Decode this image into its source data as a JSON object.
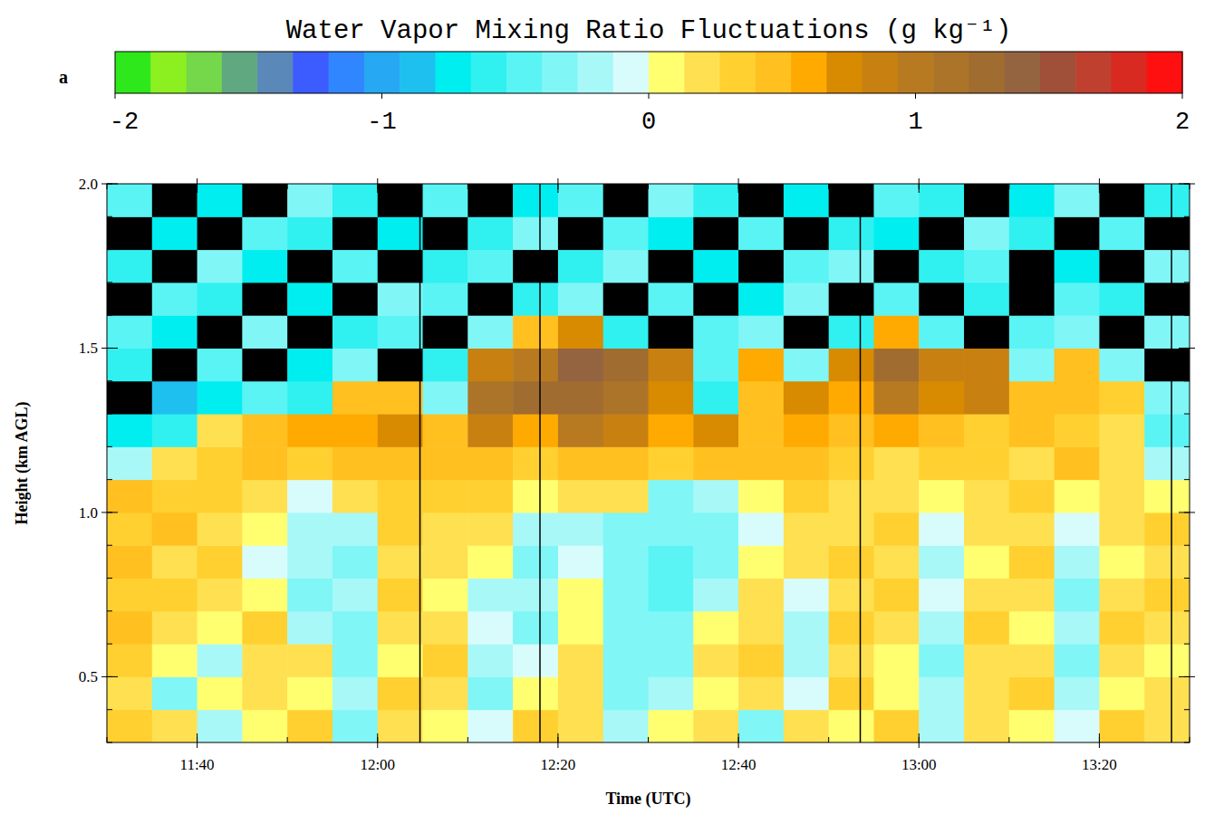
{
  "chart_data": {
    "type": "heatmap",
    "title": "Water Vapor Mixing Ratio Fluctuations (g kg⁻¹)",
    "panel_label": "a",
    "xlabel": "Time (UTC)",
    "ylabel": "Height (km AGL)",
    "xlim": [
      690,
      810
    ],
    "ylim": [
      0.3,
      2.0
    ],
    "xticks": [
      {
        "value": 700,
        "label": "11:40"
      },
      {
        "value": 720,
        "label": "12:00"
      },
      {
        "value": 740,
        "label": "12:20"
      },
      {
        "value": 760,
        "label": "12:40"
      },
      {
        "value": 780,
        "label": "13:00"
      },
      {
        "value": 800,
        "label": "13:20"
      }
    ],
    "yticks": [
      0.5,
      {
        "value": 1,
        "label": "1.0"
      },
      1.5,
      {
        "value": 2,
        "label": "2.0"
      }
    ],
    "x": [
      690,
      695,
      700,
      705,
      710,
      715,
      720,
      725,
      730,
      735,
      740,
      745,
      750,
      755,
      760,
      765,
      770,
      775,
      780,
      785,
      790,
      795,
      800,
      805,
      810
    ],
    "y": [
      0.3,
      0.4,
      0.5,
      0.6,
      0.7,
      0.8,
      0.9,
      1.0,
      1.1,
      1.2,
      1.3,
      1.4,
      1.5,
      1.6,
      1.7,
      1.8,
      1.9,
      2.0
    ],
    "values": [
      [
        0.3,
        0.2,
        -0.2,
        0.1,
        0.3,
        -0.3,
        0.2,
        0.1,
        -0.1,
        0.3,
        0.2,
        -0.2,
        0.1,
        0.2,
        -0.3,
        0.2,
        0.1,
        0.3,
        -0.2,
        0.2,
        0.1,
        -0.1,
        0.3,
        0.2
      ],
      [
        0.2,
        -0.3,
        0.1,
        0.2,
        0.1,
        -0.2,
        0.3,
        0.2,
        -0.3,
        0.1,
        0.2,
        -0.4,
        -0.2,
        0.1,
        0.2,
        -0.1,
        0.3,
        0.1,
        -0.2,
        0.2,
        0.3,
        -0.2,
        0.1,
        0.2
      ],
      [
        0.3,
        0.1,
        -0.2,
        0.2,
        0.2,
        -0.3,
        0.1,
        0.3,
        -0.2,
        -0.1,
        0.2,
        -0.3,
        -0.4,
        0.2,
        0.3,
        -0.2,
        0.2,
        0.1,
        -0.3,
        0.2,
        0.2,
        -0.3,
        0.2,
        0.1
      ],
      [
        0.4,
        0.2,
        0.1,
        0.3,
        -0.2,
        -0.3,
        0.2,
        0.2,
        -0.1,
        -0.3,
        0.1,
        -0.4,
        -0.3,
        0.1,
        0.2,
        -0.2,
        0.3,
        0.2,
        -0.2,
        0.3,
        0.1,
        -0.2,
        0.3,
        0.2
      ],
      [
        0.3,
        0.3,
        0.2,
        0.1,
        -0.3,
        -0.2,
        0.3,
        0.1,
        -0.2,
        -0.2,
        0.1,
        -0.3,
        -0.5,
        -0.2,
        0.2,
        -0.1,
        0.2,
        0.3,
        -0.1,
        0.2,
        0.2,
        -0.3,
        0.2,
        0.3
      ],
      [
        0.4,
        0.2,
        0.3,
        -0.1,
        -0.2,
        -0.3,
        0.2,
        0.2,
        0.1,
        -0.3,
        -0.1,
        -0.4,
        -0.5,
        -0.3,
        0.1,
        0.2,
        0.3,
        0.2,
        -0.2,
        0.1,
        0.3,
        -0.2,
        0.1,
        0.2
      ],
      [
        0.3,
        0.4,
        0.2,
        0.1,
        -0.2,
        -0.2,
        0.3,
        0.2,
        0.2,
        -0.2,
        -0.2,
        -0.3,
        -0.4,
        -0.3,
        -0.1,
        0.2,
        0.2,
        0.3,
        -0.1,
        0.2,
        0.2,
        -0.1,
        0.2,
        0.3
      ],
      [
        0.4,
        0.3,
        0.3,
        0.2,
        -0.1,
        0.2,
        0.3,
        0.3,
        0.3,
        0.1,
        0.2,
        0.2,
        -0.3,
        -0.2,
        0.1,
        0.3,
        0.2,
        0.2,
        0.1,
        0.2,
        0.3,
        0.1,
        0.2,
        0.1
      ],
      [
        -0.2,
        0.2,
        0.3,
        0.4,
        0.3,
        0.4,
        0.5,
        0.4,
        0.4,
        0.3,
        0.5,
        0.4,
        0.3,
        0.4,
        0.4,
        0.4,
        0.3,
        0.2,
        0.3,
        0.3,
        0.2,
        0.4,
        0.2,
        -0.2
      ],
      [
        -0.8,
        -0.6,
        0.2,
        0.5,
        0.6,
        0.6,
        0.7,
        0.5,
        0.8,
        0.6,
        1.0,
        0.8,
        0.6,
        0.7,
        0.5,
        0.6,
        0.4,
        0.6,
        0.5,
        0.3,
        0.4,
        0.3,
        0.2,
        -0.5
      ],
      [
        null,
        -0.9,
        -0.7,
        -0.5,
        -0.6,
        0.4,
        0.5,
        -0.3,
        1.1,
        1.2,
        1.3,
        1.1,
        0.7,
        -0.6,
        0.5,
        0.7,
        0.6,
        1.0,
        0.7,
        0.8,
        0.5,
        0.4,
        0.3,
        -0.4
      ],
      [
        -0.6,
        null,
        -0.5,
        null,
        -0.7,
        -0.4,
        null,
        -0.6,
        0.9,
        1.0,
        1.4,
        1.2,
        0.8,
        -0.5,
        0.6,
        -0.4,
        0.7,
        1.2,
        0.8,
        0.9,
        -0.3,
        0.5,
        -0.4,
        null
      ],
      [
        -0.5,
        -0.7,
        null,
        -0.4,
        null,
        -0.6,
        -0.5,
        null,
        -0.4,
        0.5,
        0.7,
        -0.6,
        null,
        -0.5,
        -0.3,
        null,
        -0.6,
        0.6,
        -0.5,
        null,
        -0.5,
        -0.4,
        null,
        -0.3
      ],
      [
        null,
        -0.5,
        -0.6,
        null,
        -0.8,
        null,
        -0.4,
        -0.5,
        null,
        -0.6,
        -0.3,
        null,
        -0.5,
        null,
        -0.7,
        -0.4,
        null,
        -0.5,
        null,
        -0.6,
        null,
        -0.5,
        -0.6,
        null
      ],
      [
        -0.6,
        null,
        -0.4,
        -0.7,
        null,
        -0.5,
        null,
        -0.6,
        -0.5,
        null,
        -0.6,
        -0.4,
        null,
        -0.7,
        null,
        -0.5,
        -0.4,
        null,
        -0.6,
        -0.5,
        null,
        -0.7,
        null,
        -0.4
      ],
      [
        null,
        -0.7,
        null,
        -0.5,
        -0.6,
        null,
        -0.7,
        null,
        -0.6,
        -0.4,
        null,
        -0.5,
        -0.8,
        null,
        -0.5,
        null,
        -0.6,
        -0.7,
        null,
        -0.4,
        -0.6,
        null,
        -0.5,
        null
      ],
      [
        -0.5,
        null,
        -0.8,
        null,
        -0.4,
        -0.6,
        null,
        -0.5,
        null,
        -0.7,
        -0.5,
        null,
        -0.4,
        -0.6,
        null,
        -0.7,
        null,
        -0.5,
        -0.6,
        null,
        -0.7,
        -0.4,
        null,
        -0.6
      ]
    ],
    "missing_profiles": [
      724.7,
      738,
      773.5,
      808
    ],
    "colorbar": {
      "range": [
        -2,
        2
      ],
      "ticks": [
        -2,
        -1,
        0,
        1,
        2
      ],
      "colors": [
        "#2ee81c",
        "#8cf020",
        "#74d84a",
        "#60a880",
        "#5a88b8",
        "#3c5cff",
        "#2f86ff",
        "#26a8f2",
        "#1ec0f0",
        "#00eef0",
        "#30f0f0",
        "#5af4f4",
        "#80f6f6",
        "#a8f8f8",
        "#d8fcfc",
        "#ffff70",
        "#ffe050",
        "#ffd030",
        "#ffc020",
        "#ffaa00",
        "#d88a00",
        "#c88010",
        "#b87a20",
        "#ac7428",
        "#a06c30",
        "#946440",
        "#a05038",
        "#c04030",
        "#d82a20",
        "#ff1010"
      ]
    }
  }
}
